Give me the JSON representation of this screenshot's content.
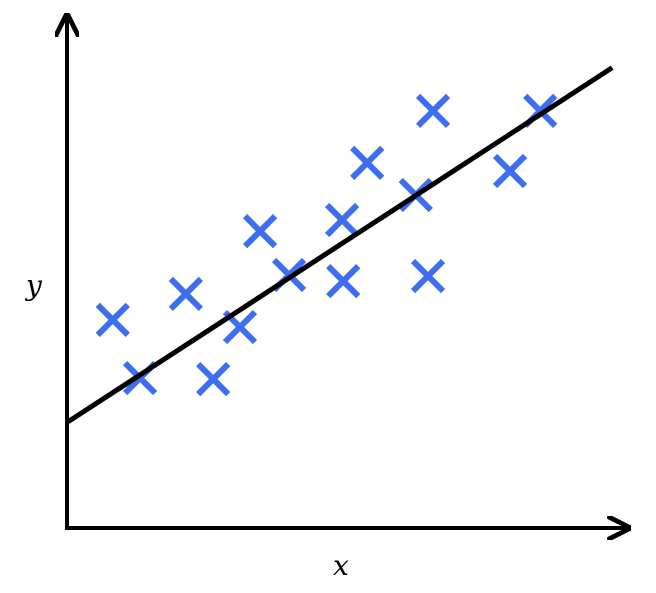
{
  "chart_data": {
    "type": "scatter",
    "title": "",
    "xlabel": "x",
    "ylabel": "y",
    "xlim": [
      0,
      10
    ],
    "ylim": [
      0,
      10
    ],
    "grid": false,
    "ticks": false,
    "marker": "x",
    "colors": {
      "points": "#3d6ef0",
      "line": "#000000",
      "axes": "#000000"
    },
    "points": [
      {
        "x": 0.82,
        "y": 4.08
      },
      {
        "x": 1.31,
        "y": 2.94
      },
      {
        "x": 2.13,
        "y": 4.59
      },
      {
        "x": 2.62,
        "y": 2.92
      },
      {
        "x": 3.1,
        "y": 3.94
      },
      {
        "x": 3.46,
        "y": 5.82
      },
      {
        "x": 3.98,
        "y": 4.96
      },
      {
        "x": 4.93,
        "y": 6.04
      },
      {
        "x": 4.95,
        "y": 4.84
      },
      {
        "x": 5.38,
        "y": 7.16
      },
      {
        "x": 6.25,
        "y": 6.53
      },
      {
        "x": 6.47,
        "y": 4.94
      },
      {
        "x": 6.56,
        "y": 8.18
      },
      {
        "x": 7.94,
        "y": 7.0
      },
      {
        "x": 8.48,
        "y": 8.18
      }
    ],
    "fit_line": {
      "slope": 0.712,
      "intercept": 2.07,
      "x_range": [
        0.02,
        9.77
      ]
    }
  }
}
